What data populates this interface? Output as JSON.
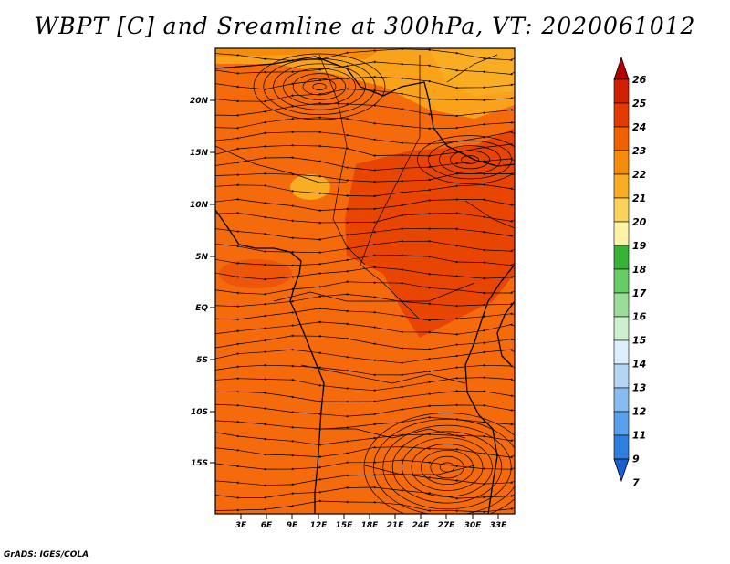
{
  "title": "WBPT [C] and Sreamline at 300hPa, VT: 2020061012",
  "credit": "GrADS: IGES/COLA",
  "map": {
    "lat_labels": [
      "20N",
      "15N",
      "10N",
      "5N",
      "EQ",
      "5S",
      "10S",
      "15S"
    ],
    "lon_labels": [
      "3E",
      "6E",
      "9E",
      "12E",
      "15E",
      "18E",
      "21E",
      "24E",
      "27E",
      "30E",
      "33E"
    ],
    "base_color": "#f56a0b"
  },
  "colorbar": {
    "labels": [
      "26",
      "25",
      "24",
      "23",
      "22",
      "21",
      "20",
      "19",
      "18",
      "17",
      "16",
      "15",
      "14",
      "13",
      "12",
      "11",
      "9",
      "7"
    ],
    "colors": [
      "#b30000",
      "#d21f00",
      "#e43a00",
      "#f26100",
      "#f78c0a",
      "#f9ad22",
      "#fbd35a",
      "#fdf3a8",
      "#38b238",
      "#66cc66",
      "#99dd99",
      "#ccf0cc",
      "#ddeeff",
      "#b3d6f7",
      "#86bcf0",
      "#5ba0ea",
      "#2e7fe0",
      "#1a5fd0"
    ]
  }
}
